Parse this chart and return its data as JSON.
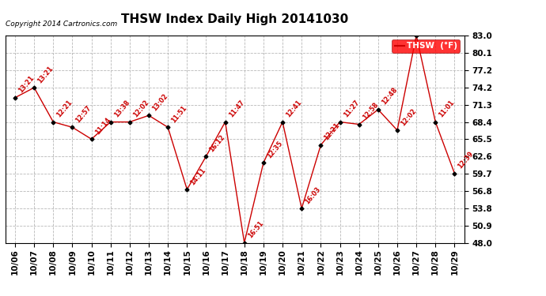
{
  "title": "THSW Index Daily High 20141030",
  "copyright": "Copyright 2014 Cartronics.com",
  "legend_label": "THSW  (°F)",
  "dates": [
    "10/06",
    "10/07",
    "10/08",
    "10/09",
    "10/10",
    "10/11",
    "10/12",
    "10/13",
    "10/14",
    "10/15",
    "10/16",
    "10/17",
    "10/18",
    "10/19",
    "10/20",
    "10/21",
    "10/22",
    "10/23",
    "10/24",
    "10/25",
    "10/26",
    "10/27",
    "10/28",
    "10/29"
  ],
  "values": [
    72.5,
    74.2,
    68.4,
    67.5,
    65.5,
    68.4,
    68.4,
    69.5,
    67.5,
    57.0,
    62.6,
    68.4,
    48.0,
    61.5,
    68.4,
    53.8,
    64.5,
    68.4,
    68.0,
    70.5,
    67.0,
    83.0,
    68.4,
    59.7
  ],
  "time_labels": [
    "13:21",
    "13:21",
    "12:21",
    "12:57",
    "11:14",
    "13:38",
    "12:02",
    "13:02",
    "11:51",
    "14:11",
    "16:12",
    "11:47",
    "16:51",
    "12:35",
    "12:41",
    "16:03",
    "12:21",
    "11:27",
    "12:58",
    "12:48",
    "12:02",
    "",
    "11:01",
    "12:39"
  ],
  "ylim": [
    48.0,
    83.0
  ],
  "yticks": [
    48.0,
    50.9,
    53.8,
    56.8,
    59.7,
    62.6,
    65.5,
    68.4,
    71.3,
    74.2,
    77.2,
    80.1,
    83.0
  ],
  "line_color": "#cc0000",
  "marker_color": "#000000",
  "bg_color": "#ffffff",
  "grid_color": "#b0b0b0",
  "title_fontsize": 11,
  "label_fontsize": 6.5,
  "tick_fontsize": 7.5,
  "fig_width": 6.9,
  "fig_height": 3.75,
  "dpi": 100
}
